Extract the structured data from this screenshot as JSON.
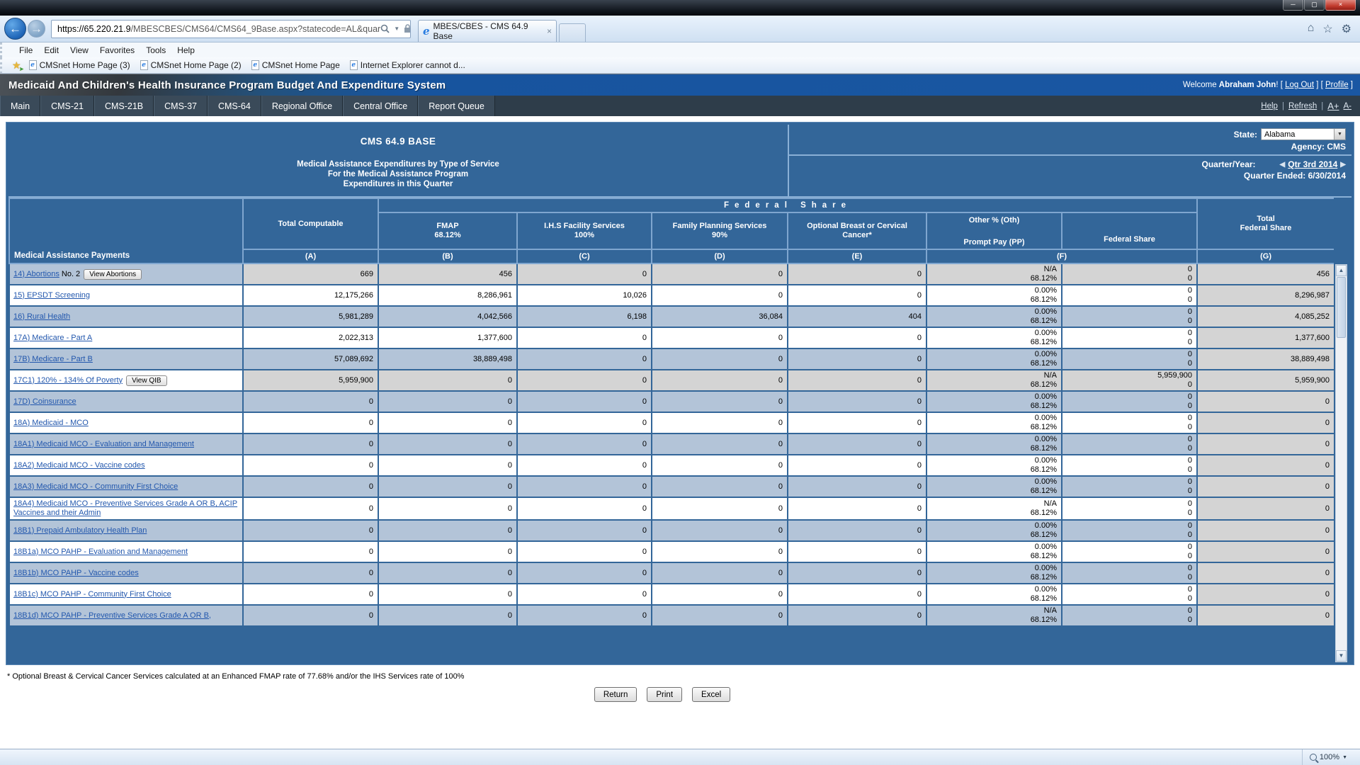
{
  "window": {
    "minimize": "─",
    "maximize": "▢",
    "close": "×"
  },
  "browser": {
    "url_host": "https://65.220.21.9",
    "url_path": "/MBESCBES/CMS64/CMS64_9Base.aspx?statecode=AL&quar",
    "tab_title": "MBES/CBES - CMS 64.9 Base",
    "menu_items": [
      "File",
      "Edit",
      "View",
      "Favorites",
      "Tools",
      "Help"
    ],
    "favorites": [
      "CMSnet Home Page (3)",
      "CMSnet Home Page (2)",
      "CMSnet Home Page",
      "Internet Explorer cannot d..."
    ],
    "status_zoom": "100%"
  },
  "app_header": {
    "title": "Medicaid And Children's Health Insurance Program Budget And Expenditure System",
    "welcome_prefix": "Welcome ",
    "user_name": "Abraham John",
    "log_out": "Log Out",
    "profile": "Profile"
  },
  "nav": {
    "items": [
      "Main",
      "CMS-21",
      "CMS-21B",
      "CMS-37",
      "CMS-64",
      "Regional Office",
      "Central Office",
      "Report Queue"
    ],
    "help": "Help",
    "refresh": "Refresh",
    "font_plus": "A+",
    "font_minus": "A-"
  },
  "form": {
    "title": "CMS 64.9 BASE",
    "subtitle_lines": [
      "Medical Assistance Expenditures by Type of Service",
      "For the Medical Assistance Program",
      "Expenditures in this Quarter"
    ],
    "state_label": "State:",
    "state_value": "Alabama",
    "agency": "Agency: CMS",
    "quarter_label": "Quarter/Year:",
    "quarter_value": "Qtr 3rd 2014",
    "quarter_ended": "Quarter Ended: 6/30/2014"
  },
  "table": {
    "headers": {
      "payments": "Medical Assistance Payments",
      "group": "Federal Share",
      "total_computable": "Total Computable",
      "fmap_1": "FMAP",
      "fmap_2": "68.12%",
      "ihs_1": "I.H.S Facility Services",
      "ihs_2": "100%",
      "fp_1": "Family Planning Services",
      "fp_2": "90%",
      "bcc_1": "Optional Breast or Cervical",
      "bcc_2": "Cancer*",
      "oth_1": "Other % (Oth)",
      "oth_2": "Prompt Pay (PP)",
      "fed_share": "Federal Share",
      "total_fed_1": "Total",
      "total_fed_2": "Federal Share",
      "letters": [
        "(A)",
        "(B)",
        "(C)",
        "(D)",
        "(E)",
        "(F)",
        "(G)"
      ]
    },
    "rows": [
      {
        "label": "14) Abortions",
        "suffix": "No. 2",
        "button": "View Abortions",
        "a": "669",
        "b": "456",
        "c": "0",
        "d": "0",
        "e": "0",
        "pct": "N/A",
        "rate": "68.12%",
        "fs1": "0",
        "fs2": "0",
        "g": "456",
        "disabled": true
      },
      {
        "label": "15) EPSDT Screening",
        "a": "12,175,266",
        "b": "8,286,961",
        "c": "10,026",
        "d": "0",
        "e": "0",
        "pct": "0.00%",
        "rate": "68.12%",
        "fs1": "0",
        "fs2": "0",
        "g": "8,296,987"
      },
      {
        "label": "16) Rural Health",
        "a": "5,981,289",
        "b": "4,042,566",
        "c": "6,198",
        "d": "36,084",
        "e": "404",
        "pct": "0.00%",
        "rate": "68.12%",
        "fs1": "0",
        "fs2": "0",
        "g": "4,085,252"
      },
      {
        "label": "17A) Medicare - Part A",
        "a": "2,022,313",
        "b": "1,377,600",
        "c": "0",
        "d": "0",
        "e": "0",
        "pct": "0.00%",
        "rate": "68.12%",
        "fs1": "0",
        "fs2": "0",
        "g": "1,377,600"
      },
      {
        "label": "17B) Medicare - Part B",
        "a": "57,089,692",
        "b": "38,889,498",
        "c": "0",
        "d": "0",
        "e": "0",
        "pct": "0.00%",
        "rate": "68.12%",
        "fs1": "0",
        "fs2": "0",
        "g": "38,889,498"
      },
      {
        "label": "17C1) 120% - 134% Of Poverty",
        "button": "View QIB",
        "a": "5,959,900",
        "b": "0",
        "c": "0",
        "d": "0",
        "e": "0",
        "pct": "N/A",
        "rate": "68.12%",
        "fs1": "5,959,900",
        "fs2": "0",
        "g": "5,959,900",
        "disabled": true
      },
      {
        "label": "17D) Coinsurance",
        "a": "0",
        "b": "0",
        "c": "0",
        "d": "0",
        "e": "0",
        "pct": "0.00%",
        "rate": "68.12%",
        "fs1": "0",
        "fs2": "0",
        "g": "0"
      },
      {
        "label": "18A) Medicaid - MCO",
        "a": "0",
        "b": "0",
        "c": "0",
        "d": "0",
        "e": "0",
        "pct": "0.00%",
        "rate": "68.12%",
        "fs1": "0",
        "fs2": "0",
        "g": "0"
      },
      {
        "label": "18A1) Medicaid MCO - Evaluation and Management",
        "a": "0",
        "b": "0",
        "c": "0",
        "d": "0",
        "e": "0",
        "pct": "0.00%",
        "rate": "68.12%",
        "fs1": "0",
        "fs2": "0",
        "g": "0"
      },
      {
        "label": "18A2) Medicaid MCO - Vaccine codes",
        "a": "0",
        "b": "0",
        "c": "0",
        "d": "0",
        "e": "0",
        "pct": "0.00%",
        "rate": "68.12%",
        "fs1": "0",
        "fs2": "0",
        "g": "0"
      },
      {
        "label": "18A3) Medicaid MCO - Community First Choice",
        "a": "0",
        "b": "0",
        "c": "0",
        "d": "0",
        "e": "0",
        "pct": "0.00%",
        "rate": "68.12%",
        "fs1": "0",
        "fs2": "0",
        "g": "0"
      },
      {
        "label": "18A4) Medicaid MCO - Preventive Services Grade A OR B, ACIP Vaccines and their Admin",
        "a": "0",
        "b": "0",
        "c": "0",
        "d": "0",
        "e": "0",
        "pct": "N/A",
        "rate": "68.12%",
        "fs1": "0",
        "fs2": "0",
        "g": "0"
      },
      {
        "label": "18B1) Prepaid Ambulatory Health Plan",
        "a": "0",
        "b": "0",
        "c": "0",
        "d": "0",
        "e": "0",
        "pct": "0.00%",
        "rate": "68.12%",
        "fs1": "0",
        "fs2": "0",
        "g": "0"
      },
      {
        "label": "18B1a) MCO PAHP - Evaluation and Management",
        "a": "0",
        "b": "0",
        "c": "0",
        "d": "0",
        "e": "0",
        "pct": "0.00%",
        "rate": "68.12%",
        "fs1": "0",
        "fs2": "0",
        "g": "0"
      },
      {
        "label": "18B1b) MCO PAHP - Vaccine codes",
        "a": "0",
        "b": "0",
        "c": "0",
        "d": "0",
        "e": "0",
        "pct": "0.00%",
        "rate": "68.12%",
        "fs1": "0",
        "fs2": "0",
        "g": "0"
      },
      {
        "label": "18B1c) MCO PAHP - Community First Choice",
        "a": "0",
        "b": "0",
        "c": "0",
        "d": "0",
        "e": "0",
        "pct": "0.00%",
        "rate": "68.12%",
        "fs1": "0",
        "fs2": "0",
        "g": "0"
      },
      {
        "label": "18B1d) MCO PAHP - Preventive Services Grade A OR B,",
        "a": "0",
        "b": "0",
        "c": "0",
        "d": "0",
        "e": "0",
        "pct": "N/A",
        "rate": "68.12%",
        "fs1": "0",
        "fs2": "0",
        "g": "0"
      }
    ]
  },
  "footnote": "* Optional Breast & Cervical Cancer Services calculated at an Enhanced FMAP rate of 77.68% and/or the IHS Services rate of 100%",
  "actions": [
    "Return",
    "Print",
    "Excel"
  ]
}
